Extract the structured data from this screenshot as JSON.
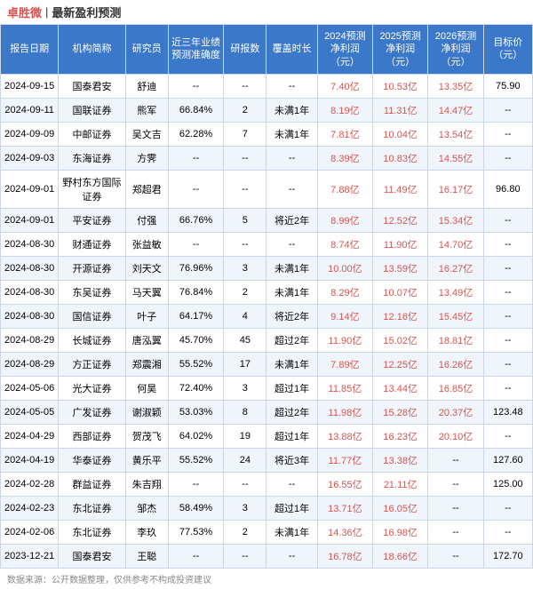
{
  "header": {
    "main": "卓胜微",
    "sep": "|",
    "sub": "最新盈利预测"
  },
  "columns": [
    "报告日期",
    "机构简称",
    "研究员",
    "近三年业绩预测准确度",
    "研报数",
    "覆盖时长",
    "2024预测净利润（元）",
    "2025预测净利润（元）",
    "2026预测净利润（元）",
    "目标价（元）"
  ],
  "rows": [
    [
      "2024-09-15",
      "国泰君安",
      "舒迪",
      "--",
      "--",
      "--",
      "7.40亿",
      "10.53亿",
      "13.35亿",
      "75.90"
    ],
    [
      "2024-09-11",
      "国联证券",
      "熊军",
      "66.84%",
      "2",
      "未满1年",
      "8.19亿",
      "11.31亿",
      "14.47亿",
      "--"
    ],
    [
      "2024-09-09",
      "中邮证券",
      "吴文吉",
      "62.28%",
      "7",
      "未满1年",
      "7.81亿",
      "10.04亿",
      "13.54亿",
      "--"
    ],
    [
      "2024-09-03",
      "东海证券",
      "方霁",
      "--",
      "--",
      "--",
      "8.39亿",
      "10.83亿",
      "14.55亿",
      "--"
    ],
    [
      "2024-09-01",
      "野村东方国际证券",
      "郑超君",
      "--",
      "--",
      "--",
      "7.88亿",
      "11.49亿",
      "16.17亿",
      "96.80"
    ],
    [
      "2024-09-01",
      "平安证券",
      "付强",
      "66.76%",
      "5",
      "将近2年",
      "8.99亿",
      "12.52亿",
      "15.34亿",
      "--"
    ],
    [
      "2024-08-30",
      "财通证券",
      "张益敏",
      "--",
      "--",
      "--",
      "8.74亿",
      "11.90亿",
      "14.70亿",
      "--"
    ],
    [
      "2024-08-30",
      "开源证券",
      "刘天文",
      "76.96%",
      "3",
      "未满1年",
      "10.00亿",
      "13.59亿",
      "16.27亿",
      "--"
    ],
    [
      "2024-08-30",
      "东吴证券",
      "马天翼",
      "76.84%",
      "2",
      "未满1年",
      "8.29亿",
      "10.07亿",
      "13.49亿",
      "--"
    ],
    [
      "2024-08-30",
      "国信证券",
      "叶子",
      "64.17%",
      "4",
      "将近2年",
      "9.14亿",
      "12.16亿",
      "15.45亿",
      "--"
    ],
    [
      "2024-08-29",
      "长城证券",
      "唐泓翼",
      "45.70%",
      "45",
      "超过2年",
      "11.90亿",
      "15.02亿",
      "18.81亿",
      "--"
    ],
    [
      "2024-08-29",
      "方正证券",
      "郑震湘",
      "55.52%",
      "17",
      "未满1年",
      "7.89亿",
      "12.25亿",
      "16.26亿",
      "--"
    ],
    [
      "2024-05-06",
      "光大证券",
      "何昊",
      "72.40%",
      "3",
      "超过1年",
      "11.85亿",
      "13.44亿",
      "16.85亿",
      "--"
    ],
    [
      "2024-05-05",
      "广发证券",
      "谢淑颖",
      "53.03%",
      "8",
      "超过2年",
      "11.98亿",
      "15.28亿",
      "20.37亿",
      "123.48"
    ],
    [
      "2024-04-29",
      "西部证券",
      "贺茂飞",
      "64.02%",
      "19",
      "超过1年",
      "13.88亿",
      "16.23亿",
      "20.10亿",
      "--"
    ],
    [
      "2024-04-19",
      "华泰证券",
      "黄乐平",
      "55.52%",
      "24",
      "将近3年",
      "11.77亿",
      "13.38亿",
      "--",
      "127.60"
    ],
    [
      "2024-02-28",
      "群益证券",
      "朱吉翔",
      "--",
      "--",
      "--",
      "16.55亿",
      "21.11亿",
      "--",
      "125.00"
    ],
    [
      "2024-02-23",
      "东北证券",
      "邹杰",
      "58.49%",
      "3",
      "超过1年",
      "13.71亿",
      "16.05亿",
      "--",
      "--"
    ],
    [
      "2024-02-06",
      "东北证券",
      "李玖",
      "77.53%",
      "2",
      "未满1年",
      "14.36亿",
      "16.98亿",
      "--",
      "--"
    ],
    [
      "2023-12-21",
      "国泰君安",
      "王聪",
      "--",
      "--",
      "--",
      "16.78亿",
      "18.66亿",
      "--",
      "172.70"
    ]
  ],
  "footer": "数据来源：公开数据整理，仅供参考不构成投资建议"
}
